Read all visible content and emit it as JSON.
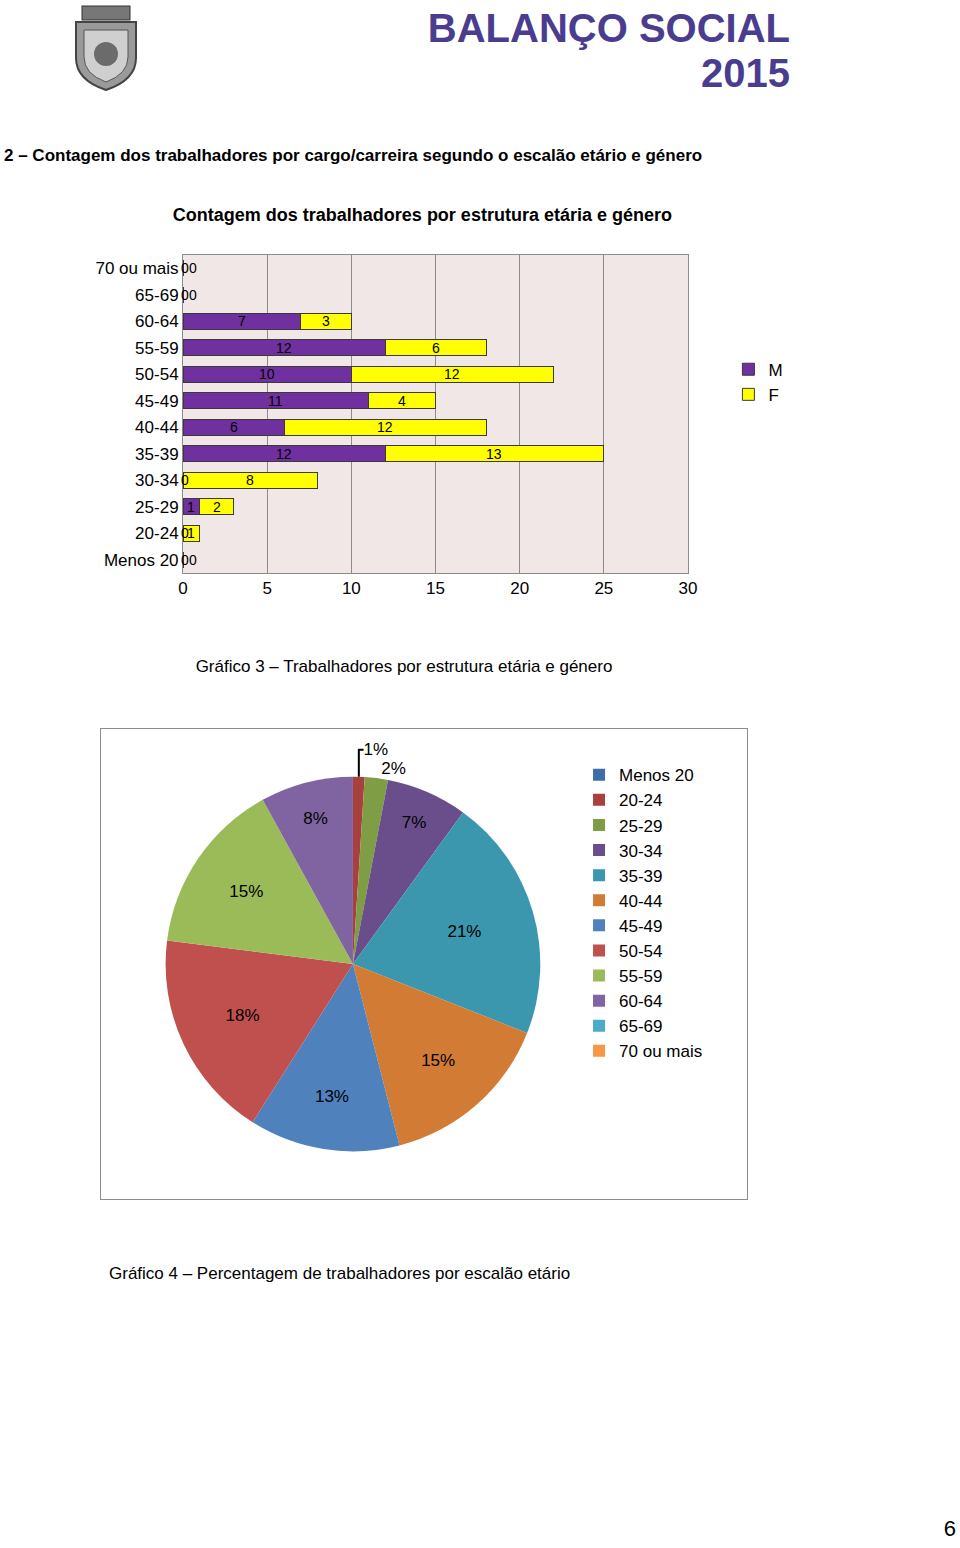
{
  "header": {
    "title": "BALANÇO SOCIAL 2015"
  },
  "section": {
    "heading": "2 – Contagem dos trabalhadores por cargo/carreira segundo o escalão etário e género"
  },
  "chart_data": [
    {
      "type": "bar",
      "title": "Contagem dos trabalhadores por estrutura etária e género",
      "orientation": "horizontal",
      "stacked": true,
      "data_labels": true,
      "grid": true,
      "legend": "right",
      "categories": [
        "Menos 20",
        "20-24",
        "25-29",
        "30-34",
        "35-39",
        "40-44",
        "45-49",
        "50-54",
        "55-59",
        "60-64",
        "65-69",
        "70 ou mais"
      ],
      "series": [
        {
          "name": "M",
          "color": "#7030a0",
          "values": [
            0,
            0,
            1,
            0,
            12,
            6,
            11,
            10,
            12,
            7,
            0,
            0
          ]
        },
        {
          "name": "F",
          "color": "#ffff00",
          "values": [
            0,
            1,
            2,
            8,
            13,
            12,
            4,
            12,
            6,
            3,
            0,
            0
          ]
        }
      ],
      "xlim": [
        0,
        30
      ],
      "xticks": [
        0,
        5,
        10,
        15,
        20,
        25,
        30
      ]
    },
    {
      "type": "pie",
      "legend": "right",
      "data_labels": true,
      "categories": [
        "Menos 20",
        "20-24",
        "25-29",
        "30-34",
        "35-39",
        "40-44",
        "45-49",
        "50-54",
        "55-59",
        "60-64",
        "65-69",
        "70 ou mais"
      ],
      "values": [
        0,
        1,
        2,
        7,
        21,
        15,
        13,
        18,
        15,
        8,
        0,
        0
      ],
      "value_labels": [
        null,
        "1%",
        "2%",
        "7%",
        "21%",
        "15%",
        "13%",
        "18%",
        "15%",
        "8%",
        null,
        null
      ],
      "colors": [
        "#3d6ea8",
        "#a8403d",
        "#7f9d45",
        "#6a4e8c",
        "#3b97ae",
        "#d27b35",
        "#4f81bd",
        "#c0504d",
        "#9bbb59",
        "#8064a2",
        "#4bacc6",
        "#f79646"
      ]
    }
  ],
  "captions": [
    "Gráfico 3 – Trabalhadores por estrutura etária e género",
    "Gráfico 4 – Percentagem de trabalhadores por escalão etário"
  ],
  "page_number": 6
}
